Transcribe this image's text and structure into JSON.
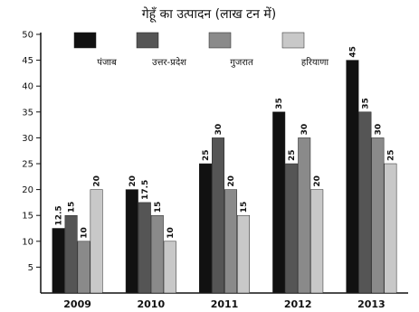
{
  "chart_data": {
    "type": "bar",
    "title": "गेहूँ का उत्पादन (लाख टन में)",
    "xlabel": "",
    "ylabel": "",
    "ylim": [
      0,
      50
    ],
    "yticks": [
      5,
      10,
      15,
      20,
      25,
      30,
      35,
      40,
      45,
      50
    ],
    "categories": [
      "2009",
      "2010",
      "2011",
      "2012",
      "2013"
    ],
    "legend_position": "top",
    "grid": false,
    "series": [
      {
        "name": "पंजाब",
        "color": "#111111",
        "values": [
          12.5,
          20,
          25,
          35,
          45
        ],
        "labels": [
          "12.5",
          "20",
          "25",
          "35",
          "45"
        ]
      },
      {
        "name": "उत्तर-प्रदेश",
        "color": "#555555",
        "values": [
          15,
          17.5,
          30,
          25,
          35
        ],
        "labels": [
          "15",
          "17.5",
          "30",
          "25",
          "35"
        ]
      },
      {
        "name": "गुजरात",
        "color": "#8a8a8a",
        "values": [
          10,
          15,
          20,
          30,
          30
        ],
        "labels": [
          "10",
          "15",
          "20",
          "30",
          "30"
        ]
      },
      {
        "name": "हरियाणा",
        "color": "#c8c8c8",
        "values": [
          20,
          10,
          15,
          20,
          25
        ],
        "labels": [
          "20",
          "10",
          "15",
          "20",
          "25"
        ]
      }
    ]
  }
}
